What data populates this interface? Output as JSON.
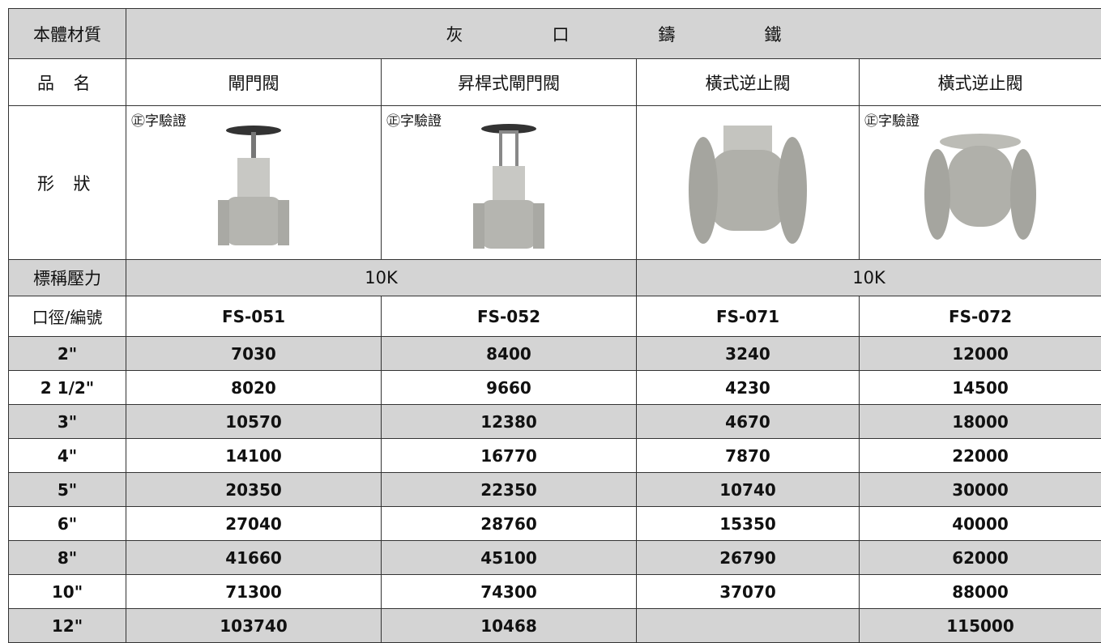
{
  "table": {
    "header": {
      "label": "本體材質",
      "material": "灰口鑄鐵"
    },
    "name_row": {
      "label": "品 名",
      "cells": [
        "閘門閥",
        "昇桿式閘門閥",
        "橫式逆止閥",
        "橫式逆止閥"
      ]
    },
    "shape_row": {
      "label": "形 狀",
      "badges": [
        "㊣字驗證",
        "㊣字驗證",
        null,
        "㊣字驗證"
      ]
    },
    "pressure_row": {
      "label": "標稱壓力",
      "groups": [
        "10K",
        "10K"
      ]
    },
    "code_row": {
      "label": "口徑/編號",
      "cells": [
        "FS-051",
        "FS-052",
        "FS-071",
        "FS-072"
      ]
    },
    "rows": [
      [
        "2\"",
        7030,
        8400,
        3240,
        12000
      ],
      [
        "2 1/2\"",
        8020,
        9660,
        4230,
        14500
      ],
      [
        "3\"",
        10570,
        12380,
        4670,
        18000
      ],
      [
        "4\"",
        14100,
        16770,
        7870,
        22000
      ],
      [
        "5\"",
        20350,
        22350,
        10740,
        30000
      ],
      [
        "6\"",
        27040,
        28760,
        15350,
        40000
      ],
      [
        "8\"",
        41660,
        45100,
        26790,
        62000
      ],
      [
        "10\"",
        71300,
        74300,
        37070,
        88000
      ],
      [
        "12\"",
        103740,
        10468,
        null,
        115000
      ]
    ]
  }
}
